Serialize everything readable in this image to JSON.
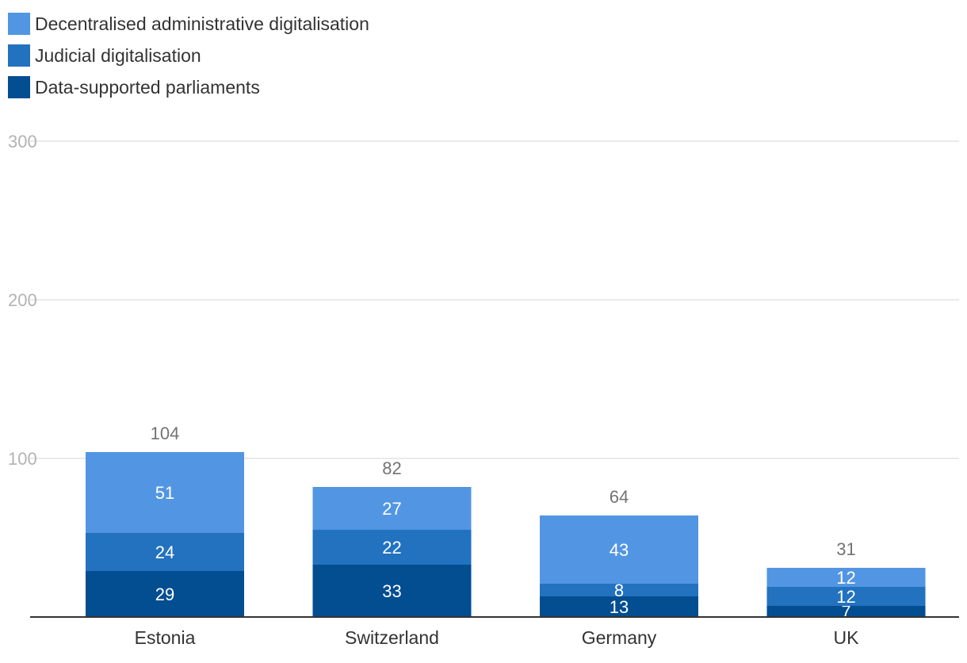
{
  "chart_data": {
    "type": "bar",
    "stacked": true,
    "categories": [
      "Estonia",
      "Switzerland",
      "Germany",
      "UK"
    ],
    "series": [
      {
        "name": "Data-supported parliaments",
        "color": "#034d91",
        "values": [
          29,
          33,
          13,
          7
        ]
      },
      {
        "name": "Judicial digitalisation",
        "color": "#2272bf",
        "values": [
          24,
          22,
          8,
          12
        ]
      },
      {
        "name": "Decentralised administrative digitalisation",
        "color": "#5296e3",
        "values": [
          51,
          27,
          43,
          12
        ]
      }
    ],
    "totals": [
      104,
      82,
      64,
      31
    ],
    "ylim": [
      0,
      300
    ],
    "yticks": [
      100,
      200,
      300
    ],
    "ytick_labels": [
      "100",
      "200",
      "300"
    ],
    "grid": true,
    "legend_position": "top-left",
    "title": "",
    "xlabel": "",
    "ylabel": ""
  }
}
